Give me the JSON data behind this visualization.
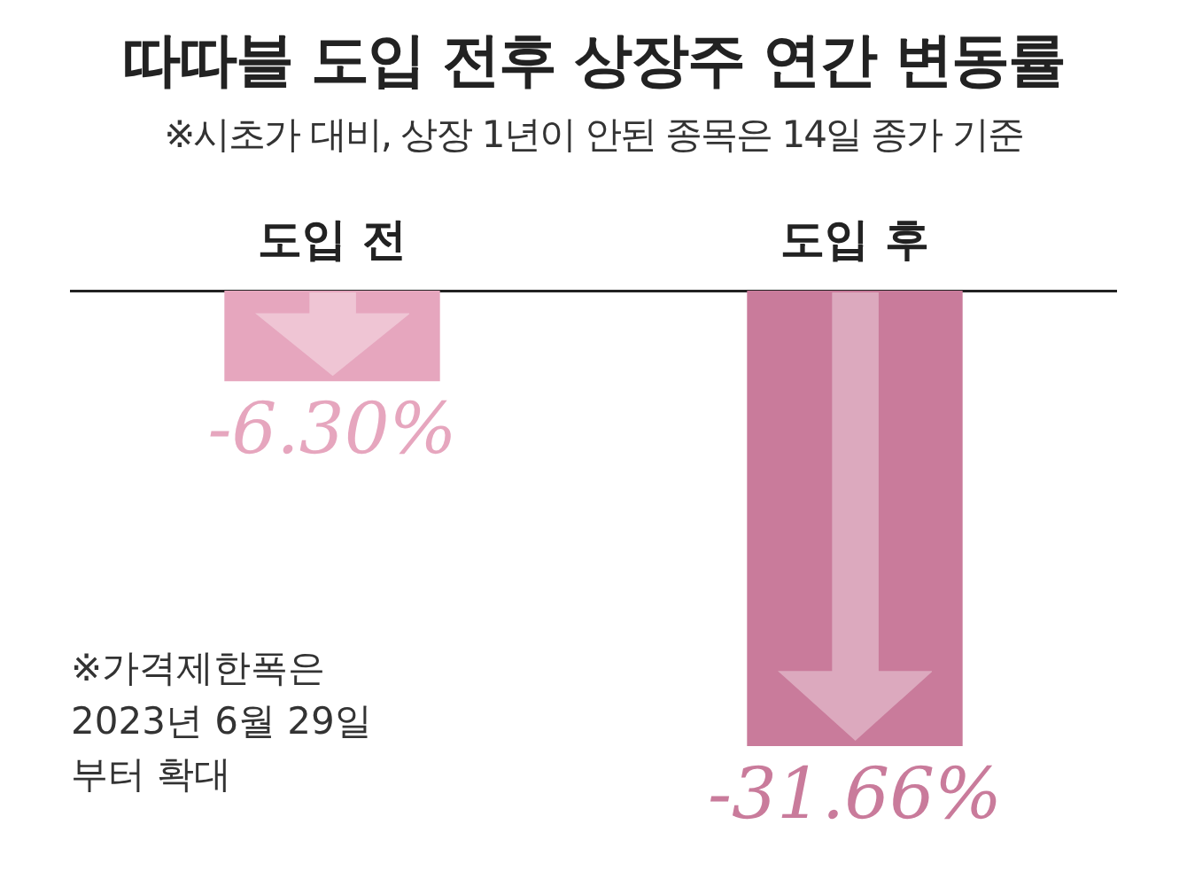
{
  "chart_data": {
    "type": "bar",
    "title": "따따블 도입 전후 상장주 연간 변동률",
    "subtitle": "※시초가 대비, 상장 1년이 안된 종목은 14일 종가 기준",
    "categories": [
      "도입 전",
      "도입 후"
    ],
    "values": [
      -6.3,
      -31.66
    ],
    "colors": [
      "#e6a6be",
      "#c97b9b"
    ],
    "value_labels": [
      "-6.30%",
      "-31.66%"
    ],
    "annotations": [
      "※가격제한폭은 2023년 6월 29일부터 확대"
    ],
    "legend": false,
    "grid": false
  }
}
